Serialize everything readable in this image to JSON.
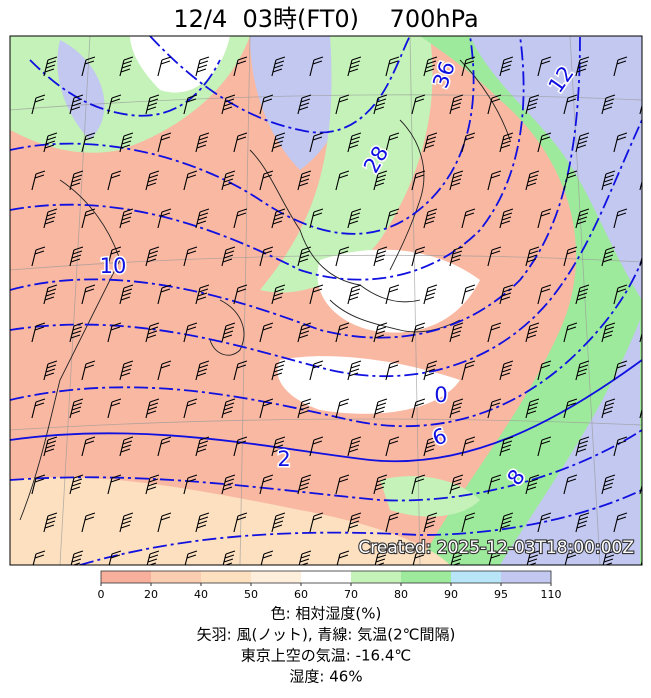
{
  "header": {
    "title": "12/4  03時(FT0)    700hPa"
  },
  "map": {
    "stamp": "Created: 2025-12-03T18:00:00Z",
    "contour_labels": [
      "36",
      "12",
      "28",
      "10",
      "0",
      "6",
      "2",
      "8"
    ]
  },
  "colorbar": {
    "ticks": [
      0,
      20,
      40,
      50,
      60,
      70,
      80,
      90,
      95,
      110
    ],
    "colors": [
      "#f8b09c",
      "#fbcdb0",
      "#fde0c0",
      "#fdefdc",
      "#ffffff",
      "#c4f2b8",
      "#9eea9c",
      "#b8e6f8",
      "#c2c8f0"
    ]
  },
  "caption": [
    "色: 相対湿度(%)",
    "矢羽: 風(ノット), 青線: 気温(2℃間隔)",
    "東京上空の気温: -16.4℃",
    "湿度: 46%"
  ]
}
